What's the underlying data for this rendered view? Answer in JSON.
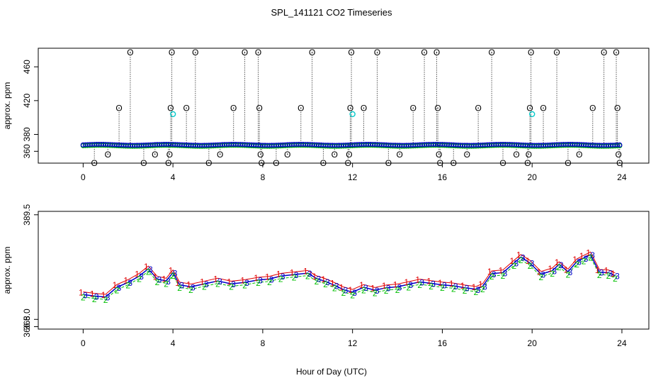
{
  "chart_data": {
    "title": "SPL_141121  CO2 Timeseries",
    "xlabel": "Hour of Day (UTC)",
    "colors": {
      "axis": "#000000",
      "series1": "#e00000",
      "series2": "#00c000",
      "series3": "#0000c8",
      "cyan": "#00c8c8",
      "dotted": "#000000"
    },
    "panels": [
      {
        "type": "scatter",
        "ylabel": "approx. ppm",
        "xlim": [
          -2,
          25.2
        ],
        "ylim": [
          346,
          482
        ],
        "xticks": [
          "0",
          "4",
          "8",
          "12",
          "16",
          "20",
          "24"
        ],
        "xtick_values": [
          0,
          4,
          8,
          12,
          16,
          20,
          24
        ],
        "yticks": [
          "360",
          "380",
          "420",
          "460"
        ],
        "ytick_values": [
          360,
          380,
          420,
          460
        ],
        "baseline_ppm": 367.5,
        "spike_high_ppm": 477,
        "spike_mid_ppm": 411,
        "spike_low_ppm": 356,
        "spike_bottom_ppm": 346,
        "spikes": [
          {
            "x": 0.5,
            "y": 346
          },
          {
            "x": 1.1,
            "y": 356
          },
          {
            "x": 1.6,
            "y": 411
          },
          {
            "x": 2.1,
            "y": 477
          },
          {
            "x": 2.7,
            "y": 346
          },
          {
            "x": 3.2,
            "y": 356
          },
          {
            "x": 3.8,
            "y": 346
          },
          {
            "x": 3.9,
            "y": 411
          },
          {
            "x": 3.95,
            "y": 477
          },
          {
            "x": 3.85,
            "y": 356
          },
          {
            "x": 4.6,
            "y": 411
          },
          {
            "x": 5.0,
            "y": 477
          },
          {
            "x": 5.6,
            "y": 346
          },
          {
            "x": 6.1,
            "y": 356
          },
          {
            "x": 6.7,
            "y": 411
          },
          {
            "x": 7.2,
            "y": 477
          },
          {
            "x": 7.8,
            "y": 477
          },
          {
            "x": 7.85,
            "y": 411
          },
          {
            "x": 7.9,
            "y": 356
          },
          {
            "x": 7.95,
            "y": 346
          },
          {
            "x": 8.6,
            "y": 346
          },
          {
            "x": 9.1,
            "y": 356
          },
          {
            "x": 9.7,
            "y": 411
          },
          {
            "x": 10.2,
            "y": 477
          },
          {
            "x": 10.7,
            "y": 346
          },
          {
            "x": 11.2,
            "y": 356
          },
          {
            "x": 11.8,
            "y": 346
          },
          {
            "x": 11.85,
            "y": 356
          },
          {
            "x": 11.9,
            "y": 411
          },
          {
            "x": 11.95,
            "y": 477
          },
          {
            "x": 12.5,
            "y": 411
          },
          {
            "x": 13.1,
            "y": 477
          },
          {
            "x": 13.6,
            "y": 346
          },
          {
            "x": 14.1,
            "y": 356
          },
          {
            "x": 14.7,
            "y": 411
          },
          {
            "x": 15.2,
            "y": 477
          },
          {
            "x": 15.75,
            "y": 477
          },
          {
            "x": 15.8,
            "y": 411
          },
          {
            "x": 15.85,
            "y": 356
          },
          {
            "x": 15.9,
            "y": 346
          },
          {
            "x": 16.5,
            "y": 346
          },
          {
            "x": 17.1,
            "y": 356
          },
          {
            "x": 17.6,
            "y": 411
          },
          {
            "x": 18.2,
            "y": 477
          },
          {
            "x": 18.7,
            "y": 346
          },
          {
            "x": 19.3,
            "y": 356
          },
          {
            "x": 19.8,
            "y": 346
          },
          {
            "x": 19.85,
            "y": 356
          },
          {
            "x": 19.9,
            "y": 411
          },
          {
            "x": 19.95,
            "y": 477
          },
          {
            "x": 20.5,
            "y": 411
          },
          {
            "x": 21.1,
            "y": 477
          },
          {
            "x": 21.6,
            "y": 346
          },
          {
            "x": 22.1,
            "y": 356
          },
          {
            "x": 22.7,
            "y": 411
          },
          {
            "x": 23.2,
            "y": 477
          },
          {
            "x": 23.75,
            "y": 477
          },
          {
            "x": 23.8,
            "y": 411
          },
          {
            "x": 23.85,
            "y": 356
          },
          {
            "x": 23.9,
            "y": 346
          }
        ],
        "cyan_points": [
          {
            "x": 4.0,
            "y": 404
          },
          {
            "x": 12.0,
            "y": 404
          },
          {
            "x": 20.0,
            "y": 404
          }
        ]
      },
      {
        "type": "scatter",
        "ylabel": "approx. ppm",
        "xlim": [
          -2,
          25.2
        ],
        "ylim": [
          366.0,
          390.2
        ],
        "xticks": [
          "0",
          "4",
          "8",
          "12",
          "16",
          "20",
          "24"
        ],
        "xtick_values": [
          0,
          4,
          8,
          12,
          16,
          20,
          24
        ],
        "yticks": [
          "366.5",
          "368.0",
          "389.5"
        ],
        "ytick_values": [
          366.5,
          368.0,
          389.5
        ],
        "series_labels": [
          "1",
          "2",
          "3"
        ],
        "x": [
          0.0,
          0.5,
          1.0,
          1.5,
          2.0,
          2.5,
          2.9,
          3.3,
          3.7,
          4.0,
          4.3,
          4.8,
          5.4,
          6.0,
          6.6,
          7.2,
          7.8,
          8.3,
          8.8,
          9.4,
          10.0,
          10.4,
          10.8,
          11.2,
          11.6,
          12.0,
          12.5,
          13.0,
          13.5,
          14.0,
          14.5,
          15.0,
          15.5,
          16.0,
          16.5,
          17.0,
          17.5,
          17.8,
          18.2,
          18.7,
          19.2,
          19.5,
          19.9,
          20.4,
          20.9,
          21.2,
          21.6,
          22.0,
          22.3,
          22.6,
          23.0,
          23.4,
          23.7
        ],
        "values": [
          373.1,
          372.8,
          372.6,
          374.6,
          375.6,
          376.9,
          378.4,
          376.3,
          375.9,
          377.6,
          375.1,
          374.7,
          375.3,
          375.9,
          375.3,
          375.6,
          376.1,
          376.3,
          376.9,
          377.2,
          377.5,
          376.4,
          375.8,
          375.0,
          374.1,
          373.6,
          374.6,
          374.0,
          374.5,
          374.7,
          375.2,
          375.7,
          375.4,
          375.1,
          374.9,
          374.5,
          374.2,
          374.8,
          377.4,
          377.6,
          379.6,
          380.8,
          379.6,
          377.3,
          378.0,
          379.3,
          377.8,
          379.9,
          380.6,
          381.3,
          377.7,
          377.6,
          377.0
        ]
      }
    ]
  }
}
